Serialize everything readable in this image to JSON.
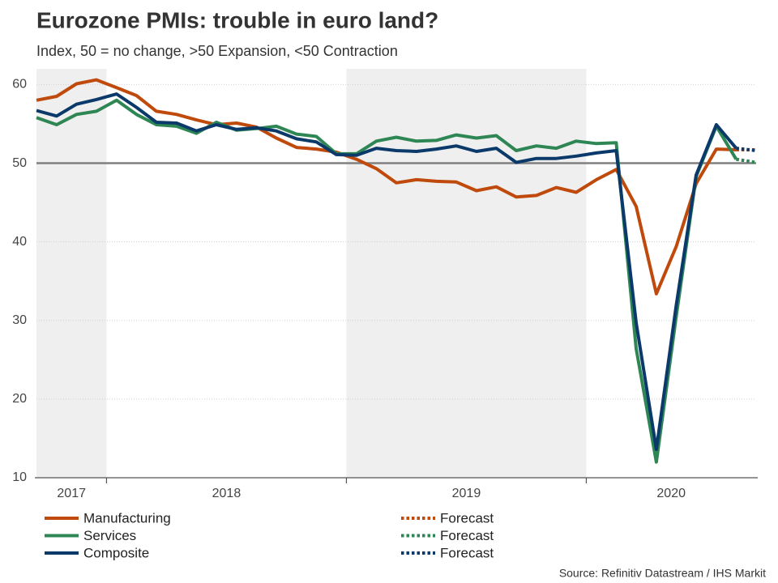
{
  "chart_data": {
    "type": "line",
    "title": "Eurozone PMIs: trouble in euro land?",
    "subtitle": "Index, 50 = no change, >50 Expansion, <50 Contraction",
    "source": "Source: Refinitiv Datastream / IHS Markit",
    "x": [
      2017.708,
      2017.792,
      2017.875,
      2017.958,
      2018.042,
      2018.125,
      2018.208,
      2018.292,
      2018.375,
      2018.458,
      2018.542,
      2018.625,
      2018.708,
      2018.792,
      2018.875,
      2018.958,
      2019.042,
      2019.125,
      2019.208,
      2019.292,
      2019.375,
      2019.458,
      2019.542,
      2019.625,
      2019.708,
      2019.792,
      2019.875,
      2019.958,
      2020.042,
      2020.125,
      2020.208,
      2020.292,
      2020.375,
      2020.458,
      2020.542,
      2020.625,
      2020.708
    ],
    "xlim": [
      2017.708,
      2020.708
    ],
    "xticks": [
      2018,
      2019,
      2020
    ],
    "year_labels": [
      "2017",
      "2018",
      "2019",
      "2020"
    ],
    "shaded_years": [
      2017,
      2019
    ],
    "ylim": [
      10,
      62
    ],
    "yticks": [
      10,
      20,
      30,
      40,
      50,
      60
    ],
    "reference_line": 50,
    "grid": true,
    "series": [
      {
        "name": "Manufacturing",
        "color": "#bf4a0c",
        "dashed": false,
        "values": [
          58.0,
          58.5,
          60.1,
          60.6,
          59.6,
          58.6,
          56.6,
          56.2,
          55.5,
          54.9,
          55.1,
          54.6,
          53.2,
          52.0,
          51.8,
          51.4,
          50.5,
          49.3,
          47.5,
          47.9,
          47.7,
          47.6,
          46.5,
          47.0,
          45.7,
          45.9,
          46.9,
          46.3,
          47.9,
          49.2,
          44.5,
          33.4,
          39.4,
          47.4,
          51.8,
          51.7,
          null
        ]
      },
      {
        "name": "Services",
        "color": "#2e8654",
        "dashed": false,
        "values": [
          55.8,
          54.9,
          56.2,
          56.6,
          58.0,
          56.2,
          54.9,
          54.7,
          53.8,
          55.2,
          54.2,
          54.4,
          54.7,
          53.7,
          53.4,
          51.2,
          51.2,
          52.8,
          53.3,
          52.8,
          52.9,
          53.6,
          53.2,
          53.5,
          51.6,
          52.2,
          51.9,
          52.8,
          52.5,
          52.6,
          26.4,
          12.0,
          30.5,
          48.3,
          54.7,
          50.5,
          null
        ]
      },
      {
        "name": "Composite",
        "color": "#0b3a6a",
        "dashed": false,
        "values": [
          56.7,
          56.0,
          57.5,
          58.1,
          58.8,
          57.1,
          55.2,
          55.1,
          54.1,
          54.9,
          54.3,
          54.5,
          54.1,
          53.1,
          52.7,
          51.1,
          51.0,
          51.9,
          51.6,
          51.5,
          51.8,
          52.2,
          51.5,
          51.9,
          50.1,
          50.6,
          50.6,
          50.9,
          51.3,
          51.6,
          29.7,
          13.6,
          31.9,
          48.5,
          54.9,
          51.9,
          null
        ]
      },
      {
        "name": "Forecast",
        "color": "#bf4a0c",
        "dashed": true,
        "values": [
          null,
          null,
          null,
          null,
          null,
          null,
          null,
          null,
          null,
          null,
          null,
          null,
          null,
          null,
          null,
          null,
          null,
          null,
          null,
          null,
          null,
          null,
          null,
          null,
          null,
          null,
          null,
          null,
          null,
          null,
          null,
          null,
          null,
          null,
          null,
          51.7,
          51.7
        ]
      },
      {
        "name": "Forecast",
        "color": "#2e8654",
        "dashed": true,
        "values": [
          null,
          null,
          null,
          null,
          null,
          null,
          null,
          null,
          null,
          null,
          null,
          null,
          null,
          null,
          null,
          null,
          null,
          null,
          null,
          null,
          null,
          null,
          null,
          null,
          null,
          null,
          null,
          null,
          null,
          null,
          null,
          null,
          null,
          null,
          null,
          50.5,
          50.1
        ]
      },
      {
        "name": "Forecast",
        "color": "#0b3a6a",
        "dashed": true,
        "values": [
          null,
          null,
          null,
          null,
          null,
          null,
          null,
          null,
          null,
          null,
          null,
          null,
          null,
          null,
          null,
          null,
          null,
          null,
          null,
          null,
          null,
          null,
          null,
          null,
          null,
          null,
          null,
          null,
          null,
          null,
          null,
          null,
          null,
          null,
          null,
          51.9,
          51.6
        ]
      }
    ]
  }
}
